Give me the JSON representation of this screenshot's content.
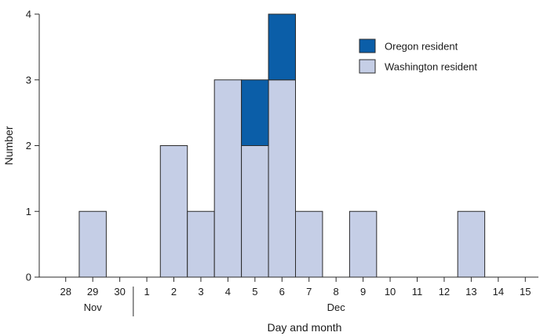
{
  "chart_data": {
    "type": "bar",
    "stacked": true,
    "xlabel": "Day and month",
    "ylabel": "Number",
    "ylim": [
      0,
      4
    ],
    "yticks": [
      0,
      1,
      2,
      3,
      4
    ],
    "categories": [
      "28",
      "29",
      "30",
      "1",
      "2",
      "3",
      "4",
      "5",
      "6",
      "7",
      "8",
      "9",
      "10",
      "11",
      "12",
      "13",
      "14",
      "15"
    ],
    "month_labels": [
      {
        "text": "Nov",
        "first": "28",
        "last": "30"
      },
      {
        "text": "Dec",
        "first": "1",
        "last": "15"
      }
    ],
    "series": [
      {
        "name": "Washington resident",
        "color": "#c5cee6",
        "values": [
          0,
          1,
          0,
          0,
          2,
          1,
          3,
          2,
          3,
          1,
          0,
          1,
          0,
          0,
          0,
          1,
          0,
          0
        ]
      },
      {
        "name": "Oregon resident",
        "color": "#0b5ea8",
        "values": [
          0,
          0,
          0,
          0,
          0,
          0,
          0,
          1,
          1,
          0,
          0,
          0,
          0,
          0,
          0,
          0,
          0,
          0
        ]
      }
    ],
    "legend": {
      "position": "top-right",
      "order": [
        "Oregon resident",
        "Washington resident"
      ]
    },
    "grid": false
  }
}
